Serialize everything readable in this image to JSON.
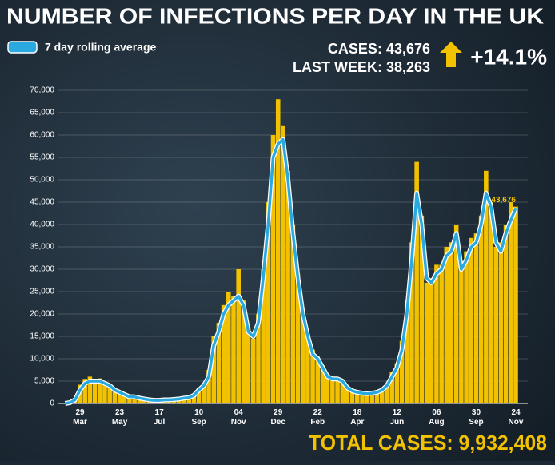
{
  "chart_data": {
    "type": "bar-line",
    "title": "NUMBER OF INFECTIONS PER DAY IN THE UK",
    "stats": {
      "cases": "CASES: 43,676",
      "last_week": "LAST WEEK: 38,263",
      "change": "+14.1%",
      "total": "TOTAL CASES: 9,932,408"
    },
    "end_label": "43,676",
    "categories": [
      null,
      null,
      null,
      "29 Mar",
      null,
      null,
      null,
      null,
      null,
      null,
      null,
      "23 May",
      null,
      null,
      null,
      null,
      null,
      null,
      null,
      "17 Jul",
      null,
      null,
      null,
      null,
      null,
      null,
      null,
      "10 Sep",
      null,
      null,
      null,
      null,
      null,
      null,
      null,
      "04 Nov",
      null,
      null,
      null,
      null,
      null,
      null,
      null,
      "29 Dec",
      null,
      null,
      null,
      null,
      null,
      null,
      null,
      "22 Feb",
      null,
      null,
      null,
      null,
      null,
      null,
      null,
      "18 Apr",
      null,
      null,
      null,
      null,
      null,
      null,
      null,
      "12 Jun",
      null,
      null,
      null,
      null,
      null,
      null,
      null,
      "06 Aug",
      null,
      null,
      null,
      null,
      null,
      null,
      null,
      "30 Sep",
      null,
      null,
      null,
      null,
      null,
      null,
      null,
      "24 Nov"
    ],
    "series": [
      {
        "color": "#f2c200",
        "kind": "bar",
        "values": [
          0,
          300,
          1200,
          4200,
          5500,
          6000,
          5200,
          5600,
          4800,
          4300,
          3200,
          2800,
          2100,
          1700,
          1400,
          1300,
          1100,
          900,
          800,
          750,
          850,
          900,
          950,
          1100,
          1300,
          1500,
          2200,
          3500,
          4600,
          7500,
          15000,
          18000,
          22000,
          25000,
          24000,
          30000,
          23000,
          17000,
          14500,
          20000,
          30000,
          45000,
          60000,
          68000,
          62000,
          52000,
          40000,
          29000,
          21000,
          15500,
          12000,
          10500,
          8500,
          6500,
          6000,
          5800,
          5200,
          3800,
          3000,
          2700,
          2500,
          2300,
          2400,
          2700,
          3300,
          4500,
          7000,
          9000,
          14000,
          23000,
          36000,
          54000,
          42000,
          27000,
          28000,
          31000,
          31000,
          35000,
          36000,
          40000,
          31000,
          34000,
          37000,
          38000,
          42000,
          52000,
          45000,
          35000,
          36000,
          40000,
          45000,
          44000
        ]
      },
      {
        "name": "7 day rolling average",
        "color": "#2aa8e0",
        "kind": "line",
        "values": [
          0,
          200,
          800,
          3000,
          4500,
          5000,
          5000,
          5000,
          4500,
          4000,
          3000,
          2500,
          2000,
          1500,
          1500,
          1200,
          1000,
          800,
          700,
          700,
          800,
          800,
          900,
          1000,
          1200,
          1300,
          1800,
          3000,
          4000,
          6000,
          13000,
          16000,
          20000,
          22000,
          23000,
          24000,
          22000,
          16000,
          15000,
          18000,
          28000,
          40000,
          55000,
          58000,
          59000,
          50000,
          38000,
          28000,
          20000,
          15000,
          11000,
          10000,
          8000,
          6000,
          5500,
          5500,
          5000,
          3500,
          2800,
          2500,
          2300,
          2200,
          2300,
          2500,
          3000,
          4000,
          6000,
          8000,
          12000,
          20000,
          32000,
          47000,
          40000,
          28000,
          27000,
          29000,
          30000,
          33000,
          34000,
          38000,
          30000,
          32000,
          35000,
          36000,
          40000,
          47000,
          44000,
          36000,
          34000,
          38000,
          41000,
          43676
        ]
      }
    ],
    "ylim": [
      0,
      70000
    ],
    "yticks": [
      0,
      {
        "value": 5000,
        "label": "5,000"
      },
      {
        "value": 10000,
        "label": "10,000"
      },
      {
        "value": 15000,
        "label": "15,000"
      },
      {
        "value": 20000,
        "label": "20,000"
      },
      {
        "value": 25000,
        "label": "25,000"
      },
      {
        "value": 30000,
        "label": "30,000"
      },
      {
        "value": 35000,
        "label": "35,000"
      },
      {
        "value": 40000,
        "label": "40,000"
      },
      {
        "value": 45000,
        "label": "45,000"
      },
      {
        "value": 50000,
        "label": "50,000"
      },
      {
        "value": 55000,
        "label": "55,000"
      },
      {
        "value": 60000,
        "label": "60,000"
      },
      {
        "value": 65000,
        "label": "65,000"
      },
      {
        "value": 70000,
        "label": "70,000"
      }
    ],
    "grid": true
  }
}
